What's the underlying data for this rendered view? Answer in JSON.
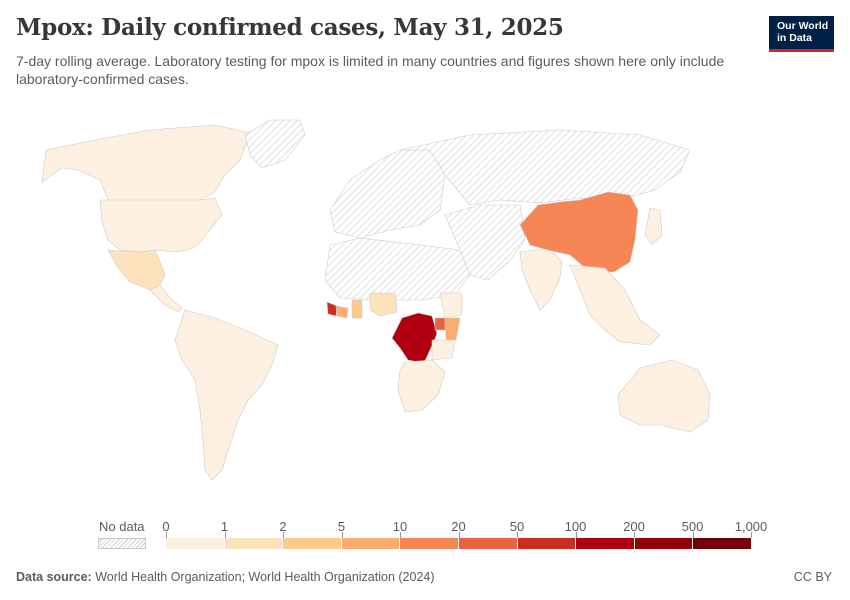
{
  "header": {
    "title": "Mpox: Daily confirmed cases, May 31, 2025",
    "subtitle": "7-day rolling average. Laboratory testing for mpox is limited in many countries and figures shown here only include laboratory-confirmed cases.",
    "logo_line1": "Our World",
    "logo_line2": "in Data"
  },
  "legend": {
    "no_data_label": "No data",
    "ticks": [
      "0",
      "1",
      "2",
      "5",
      "10",
      "20",
      "50",
      "100",
      "200",
      "500",
      "1,000"
    ],
    "colors": [
      "#fef0e1",
      "#fde2be",
      "#fcca8d",
      "#fbad6f",
      "#f78656",
      "#e9633f",
      "#cc2d21",
      "#b00012",
      "#960008",
      "#730010"
    ],
    "no_data_color": "#e3e3e3"
  },
  "map_data": {
    "metric": "Daily confirmed cases",
    "regions": [
      {
        "name": "North America",
        "bin": 0
      },
      {
        "name": "United States",
        "bin": 0
      },
      {
        "name": "Mexico",
        "bin": 1
      },
      {
        "name": "Central America",
        "bin": 0
      },
      {
        "name": "South America",
        "bin": 0
      },
      {
        "name": "Greenland",
        "bin": -1
      },
      {
        "name": "Europe",
        "bin": -1
      },
      {
        "name": "Russia",
        "bin": -1
      },
      {
        "name": "North Africa",
        "bin": -1
      },
      {
        "name": "Middle East",
        "bin": -1
      },
      {
        "name": "Sierra Leone",
        "bin": 6
      },
      {
        "name": "Liberia",
        "bin": 3
      },
      {
        "name": "Ghana",
        "bin": 2
      },
      {
        "name": "Nigeria",
        "bin": 1
      },
      {
        "name": "Ethiopia",
        "bin": 0
      },
      {
        "name": "Democratic Republic of Congo",
        "bin": 7
      },
      {
        "name": "Uganda",
        "bin": 5
      },
      {
        "name": "Kenya",
        "bin": 3
      },
      {
        "name": "Tanzania",
        "bin": 0
      },
      {
        "name": "Southern Africa",
        "bin": 0
      },
      {
        "name": "India",
        "bin": 0
      },
      {
        "name": "China",
        "bin": 4
      },
      {
        "name": "Thailand",
        "bin": 1
      },
      {
        "name": "Southeast Asia",
        "bin": 0
      },
      {
        "name": "Australia",
        "bin": 0
      },
      {
        "name": "Japan",
        "bin": 0
      }
    ]
  },
  "footer": {
    "source_label": "Data source:",
    "source_text": "World Health Organization; World Health Organization (2024)",
    "license": "CC BY"
  }
}
